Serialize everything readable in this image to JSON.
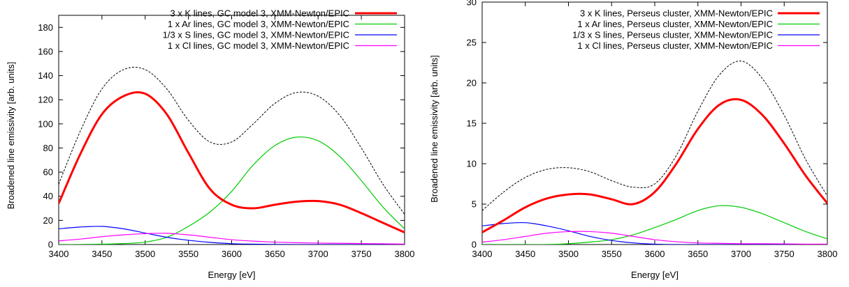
{
  "chart_data": [
    {
      "type": "line",
      "xlabel": "Energy [eV]",
      "ylabel": "Broadened line emissivity [arb. units]",
      "xlim": [
        3400,
        3800
      ],
      "ylim": [
        0,
        190
      ],
      "xticks": [
        3400,
        3450,
        3500,
        3550,
        3600,
        3650,
        3700,
        3750,
        3800
      ],
      "yticks": [
        0,
        20,
        40,
        60,
        80,
        100,
        120,
        140,
        160,
        180
      ],
      "grid": false,
      "legend_position": "top-right",
      "x": [
        3400,
        3425,
        3450,
        3475,
        3500,
        3525,
        3550,
        3575,
        3600,
        3625,
        3650,
        3675,
        3700,
        3725,
        3750,
        3775,
        3800
      ],
      "series": [
        {
          "name": "3 x K lines, GC model 3, XMM-Newton/EPIC",
          "color": "#ff0000",
          "style": "thick",
          "in_legend": true,
          "values": [
            34,
            75,
            108,
            123,
            125,
            108,
            76,
            46,
            33,
            30,
            33,
            35.5,
            36,
            33,
            26,
            18,
            10
          ]
        },
        {
          "name": "1 x Ar lines, GC model 3, XMM-Newton/EPIC",
          "color": "#00cc00",
          "style": "thin",
          "in_legend": true,
          "values": [
            0,
            0,
            0.3,
            0.8,
            2,
            6,
            15,
            27,
            44,
            66,
            82,
            89,
            86,
            73,
            53,
            31,
            13
          ]
        },
        {
          "name": "1/3 x S lines, GC model 3, XMM-Newton/EPIC",
          "color": "#0000ff",
          "style": "thin",
          "in_legend": true,
          "values": [
            13,
            14.5,
            15,
            13,
            9.5,
            6,
            3.5,
            1.8,
            0.7,
            0.3,
            0.1,
            0,
            0,
            0,
            0,
            0,
            0
          ]
        },
        {
          "name": "1 x Cl lines, GC model 3, XMM-Newton/EPIC",
          "color": "#ff00ff",
          "style": "thin",
          "in_legend": true,
          "values": [
            3,
            4.5,
            6.5,
            8,
            9,
            9.3,
            8,
            6,
            4,
            2.8,
            2,
            1.5,
            1.2,
            1,
            0.8,
            0.6,
            0.4
          ]
        },
        {
          "name": "",
          "color": "#000000",
          "style": "dashed",
          "in_legend": false,
          "values": [
            50,
            94,
            129,
            145,
            145,
            129,
            103,
            85,
            85,
            100,
            117,
            126,
            123,
            107,
            80,
            50,
            25
          ]
        }
      ]
    },
    {
      "type": "line",
      "xlabel": "Energy [eV]",
      "ylabel": "Broadened line emissivity [arb. units]",
      "xlim": [
        3400,
        3800
      ],
      "ylim": [
        0,
        30
      ],
      "xticks": [
        3400,
        3450,
        3500,
        3550,
        3600,
        3650,
        3700,
        3750,
        3800
      ],
      "yticks": [
        0,
        5,
        10,
        15,
        20,
        25,
        30
      ],
      "grid": false,
      "legend_position": "top-right",
      "x": [
        3400,
        3425,
        3450,
        3475,
        3500,
        3525,
        3550,
        3575,
        3600,
        3625,
        3650,
        3675,
        3700,
        3725,
        3750,
        3775,
        3800
      ],
      "series": [
        {
          "name": "3 x K lines, Perseus cluster, XMM-Newton/EPIC",
          "color": "#ff0000",
          "style": "thick",
          "in_legend": true,
          "values": [
            1.5,
            3,
            4.6,
            5.7,
            6.2,
            6.2,
            5.6,
            5.0,
            6.5,
            10,
            14.3,
            17.3,
            17.9,
            16,
            12.5,
            8.5,
            5.1
          ]
        },
        {
          "name": "1 x Ar lines, Perseus cluster, XMM-Newton/EPIC",
          "color": "#00cc00",
          "style": "thin",
          "in_legend": true,
          "values": [
            0,
            0,
            0,
            0,
            0.1,
            0.3,
            0.6,
            1.2,
            2.1,
            3.1,
            4.2,
            4.8,
            4.6,
            3.8,
            2.7,
            1.6,
            0.7
          ]
        },
        {
          "name": "1/3 x S lines, Perseus cluster, XMM-Newton/EPIC",
          "color": "#0000ff",
          "style": "thin",
          "in_legend": true,
          "values": [
            2.3,
            2.6,
            2.7,
            2.3,
            1.7,
            1.0,
            0.5,
            0.2,
            0.05,
            0,
            0,
            0,
            0,
            0,
            0,
            0,
            0
          ]
        },
        {
          "name": "1 x Cl lines, Perseus cluster, XMM-Newton/EPIC",
          "color": "#ff00ff",
          "style": "thin",
          "in_legend": true,
          "values": [
            0.3,
            0.6,
            1.0,
            1.4,
            1.6,
            1.6,
            1.4,
            1.0,
            0.6,
            0.35,
            0.2,
            0.15,
            0.1,
            0.1,
            0.08,
            0.05,
            0.05
          ]
        },
        {
          "name": "",
          "color": "#000000",
          "style": "dashed",
          "in_legend": false,
          "values": [
            4.2,
            6.5,
            8.3,
            9.3,
            9.5,
            9.0,
            7.9,
            7.1,
            7.5,
            11,
            16.5,
            21,
            22.7,
            20.5,
            16,
            10.5,
            6
          ]
        }
      ]
    }
  ]
}
